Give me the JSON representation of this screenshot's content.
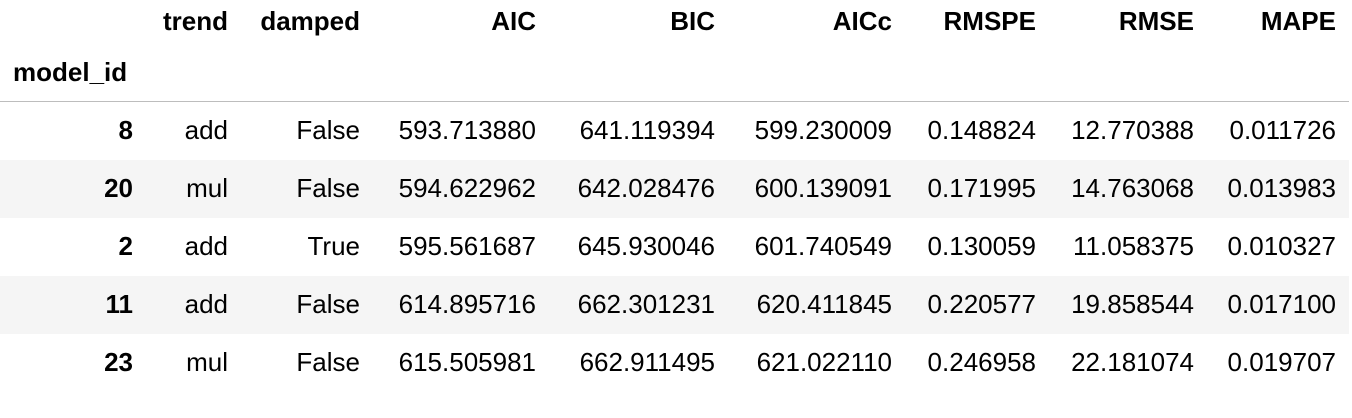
{
  "table": {
    "columns": [
      "trend",
      "damped",
      "AIC",
      "BIC",
      "AICc",
      "RMSPE",
      "RMSE",
      "MAPE"
    ],
    "index_name": "model_id",
    "rows": [
      {
        "index": "8",
        "cells": [
          "add",
          "False",
          "593.713880",
          "641.119394",
          "599.230009",
          "0.148824",
          "12.770388",
          "0.011726"
        ]
      },
      {
        "index": "20",
        "cells": [
          "mul",
          "False",
          "594.622962",
          "642.028476",
          "600.139091",
          "0.171995",
          "14.763068",
          "0.013983"
        ]
      },
      {
        "index": "2",
        "cells": [
          "add",
          "True",
          "595.561687",
          "645.930046",
          "601.740549",
          "0.130059",
          "11.058375",
          "0.010327"
        ]
      },
      {
        "index": "11",
        "cells": [
          "add",
          "False",
          "614.895716",
          "662.301231",
          "620.411845",
          "0.220577",
          "19.858544",
          "0.017100"
        ]
      },
      {
        "index": "23",
        "cells": [
          "mul",
          "False",
          "615.505981",
          "662.911495",
          "621.022110",
          "0.246958",
          "22.181074",
          "0.019707"
        ]
      }
    ]
  },
  "colors": {
    "stripe": "#f5f5f5",
    "header_rule": "#bdbdbd",
    "text": "#000000"
  }
}
